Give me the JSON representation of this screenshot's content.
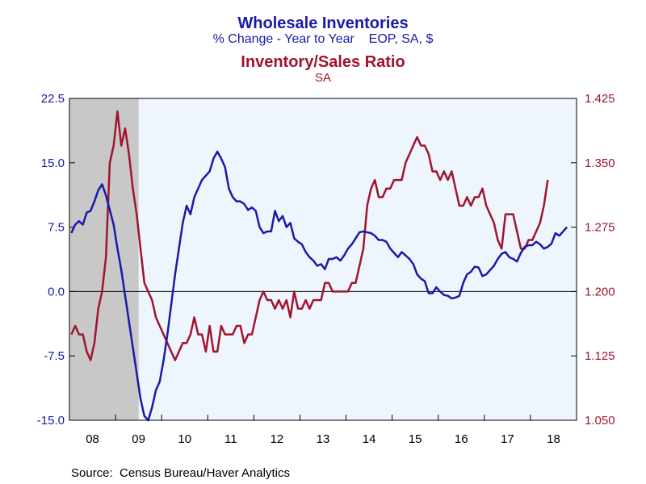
{
  "titles": {
    "line1": "Wholesale Inventories",
    "line2": "% Change - Year to Year    EOP, SA, $",
    "line3": "Inventory/Sales Ratio",
    "line4": "SA"
  },
  "source": "Source:  Census Bureau/Haver Analytics",
  "colors": {
    "inventories": "#1a1aa8",
    "ratio": "#a0142e",
    "plot_bg": "#eef5fd",
    "recession": "#c8c8c8",
    "zero_line": "#000000"
  },
  "chart_data": {
    "type": "line",
    "x_start": "2008-01",
    "x_end": "2018-12",
    "x_ticks": [
      "08",
      "09",
      "10",
      "11",
      "12",
      "13",
      "14",
      "15",
      "16",
      "17",
      "18"
    ],
    "recession": {
      "start": "2008-01",
      "end": "2009-06"
    },
    "y_left": {
      "min": -15,
      "max": 22.5,
      "ticks": [
        "22.5",
        "15.0",
        "7.5",
        "0.0",
        "-7.5",
        "-15.0"
      ]
    },
    "y_right": {
      "min": 1.05,
      "max": 1.425,
      "ticks": [
        "1.425",
        "1.350",
        "1.275",
        "1.200",
        "1.125",
        "1.050"
      ]
    },
    "grid": false,
    "zero_line": true,
    "series": [
      {
        "axis": "left",
        "start": "2008-01",
        "values": [
          6.8,
          7.8,
          8.2,
          7.8,
          9.2,
          9.4,
          10.5,
          11.8,
          12.5,
          11.2,
          9.5,
          7.8,
          5.0,
          2.5,
          -0.5,
          -3.5,
          -6.5,
          -9.5,
          -12.5,
          -14.5,
          -15.0,
          -13.5,
          -11.5,
          -10.5,
          -8.0,
          -5.0,
          -1.5,
          2.0,
          5.0,
          8.0,
          10.0,
          9.0,
          11.0,
          12.0,
          13.0,
          13.5,
          14.0,
          15.5,
          16.3,
          15.5,
          14.5,
          12.0,
          11.0,
          10.5,
          10.5,
          10.2,
          9.5,
          9.8,
          9.4,
          7.5,
          6.8,
          7.0,
          7.0,
          9.4,
          8.2,
          8.8,
          7.5,
          8.0,
          6.2,
          5.8,
          5.5,
          4.6,
          4.0,
          3.6,
          3.0,
          3.2,
          2.6,
          3.8,
          3.8,
          4.0,
          3.6,
          4.2,
          5.0,
          5.5,
          6.2,
          6.9,
          7.0,
          6.9,
          6.8,
          6.5,
          6.0,
          6.0,
          5.8,
          5.0,
          4.5,
          4.0,
          4.6,
          4.2,
          3.8,
          3.2,
          2.0,
          1.5,
          1.2,
          -0.2,
          -0.2,
          0.5,
          0.0,
          -0.4,
          -0.5,
          -0.8,
          -0.7,
          -0.5,
          1.0,
          2.0,
          2.3,
          2.9,
          2.8,
          1.8,
          2.0,
          2.5,
          3.0,
          3.8,
          4.4,
          4.6,
          4.0,
          3.8,
          3.5,
          4.5,
          5.2,
          5.4,
          5.4,
          5.8,
          5.5,
          5.0,
          5.2,
          5.6,
          6.8,
          6.5,
          7.0,
          7.5
        ]
      },
      {
        "axis": "right",
        "start": "2008-01",
        "values": [
          1.15,
          1.16,
          1.15,
          1.15,
          1.13,
          1.12,
          1.14,
          1.18,
          1.2,
          1.24,
          1.35,
          1.37,
          1.41,
          1.37,
          1.39,
          1.36,
          1.32,
          1.29,
          1.25,
          1.21,
          1.2,
          1.19,
          1.17,
          1.16,
          1.15,
          1.14,
          1.13,
          1.12,
          1.13,
          1.14,
          1.14,
          1.15,
          1.17,
          1.15,
          1.15,
          1.13,
          1.16,
          1.13,
          1.13,
          1.16,
          1.15,
          1.15,
          1.15,
          1.16,
          1.16,
          1.14,
          1.15,
          1.15,
          1.17,
          1.19,
          1.2,
          1.19,
          1.19,
          1.18,
          1.19,
          1.18,
          1.19,
          1.17,
          1.2,
          1.18,
          1.18,
          1.19,
          1.18,
          1.19,
          1.19,
          1.19,
          1.21,
          1.21,
          1.2,
          1.2,
          1.2,
          1.2,
          1.2,
          1.21,
          1.21,
          1.23,
          1.25,
          1.3,
          1.32,
          1.33,
          1.31,
          1.31,
          1.32,
          1.32,
          1.33,
          1.33,
          1.33,
          1.35,
          1.36,
          1.37,
          1.38,
          1.37,
          1.37,
          1.36,
          1.34,
          1.34,
          1.33,
          1.34,
          1.33,
          1.34,
          1.32,
          1.3,
          1.3,
          1.31,
          1.3,
          1.31,
          1.31,
          1.32,
          1.3,
          1.29,
          1.28,
          1.26,
          1.25,
          1.29,
          1.29,
          1.29,
          1.27,
          1.25,
          1.25,
          1.26,
          1.26,
          1.27,
          1.28,
          1.3,
          1.33
        ]
      }
    ]
  }
}
